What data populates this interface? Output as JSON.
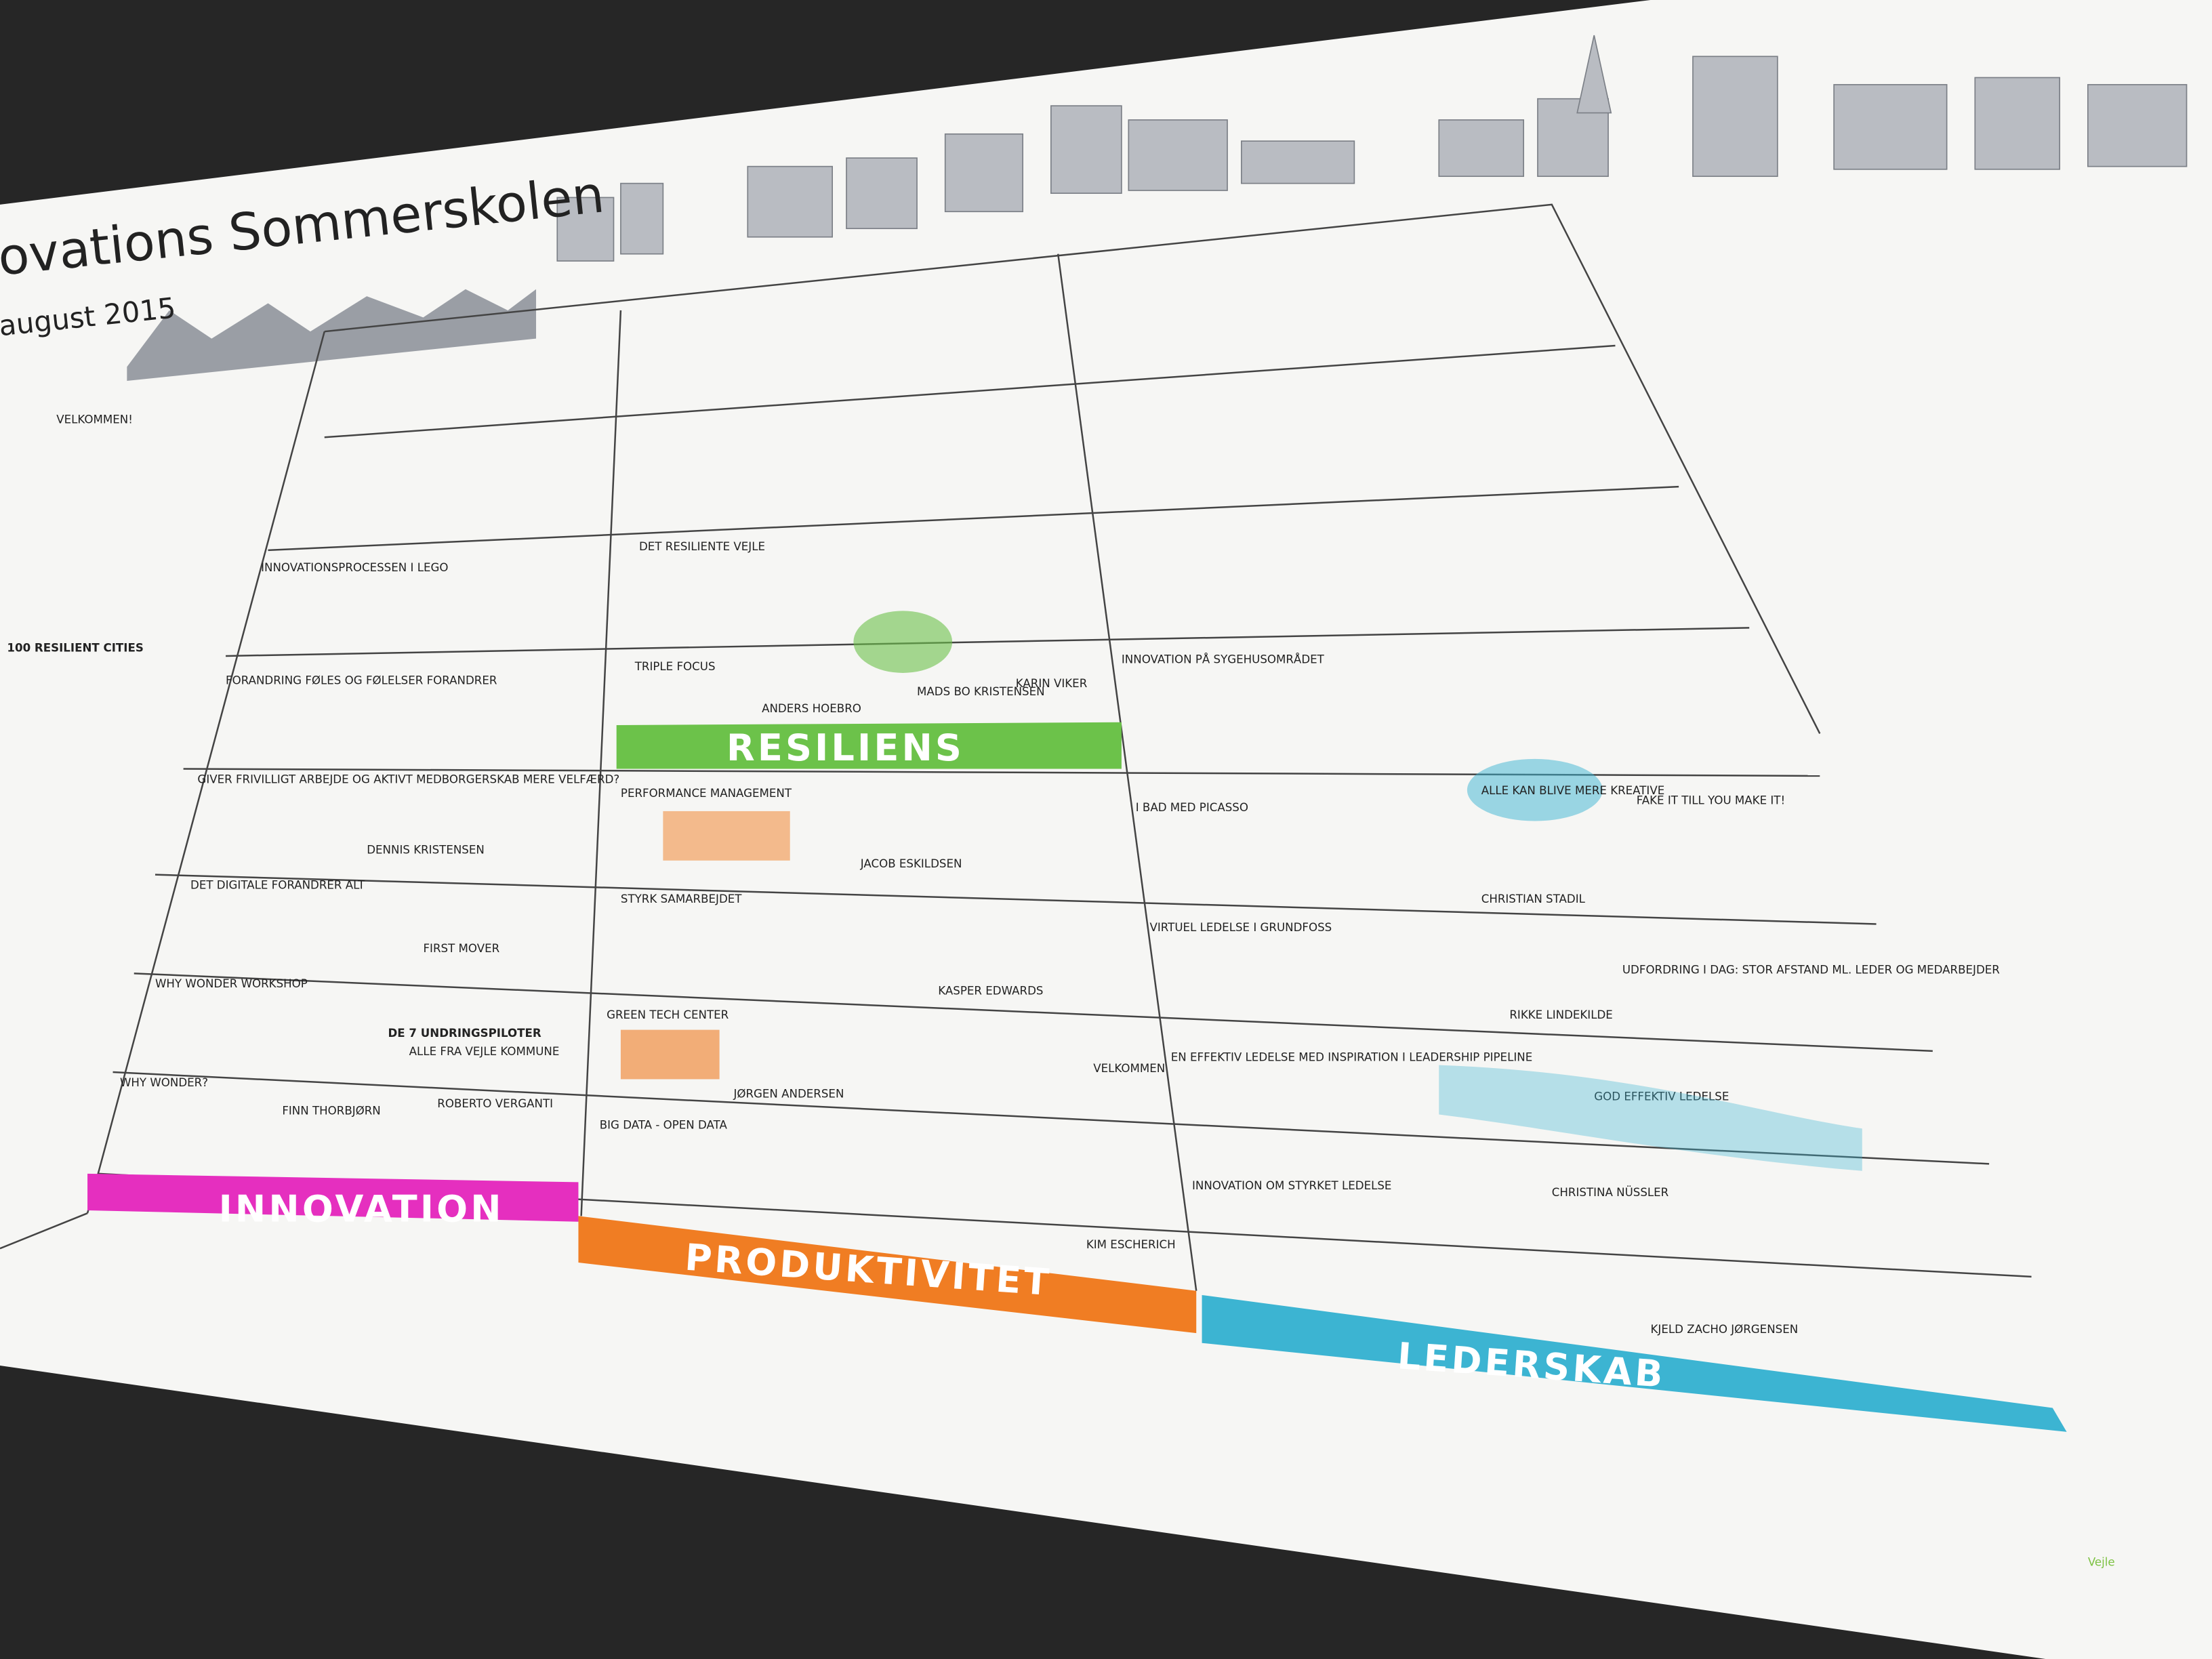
{
  "header": {
    "title": "ovations Sommerskolen",
    "date": "august 2015"
  },
  "intro": {
    "welcome": "VELKOMMEN!",
    "cities": "100 RESILIENT CITIES",
    "lego": "INNOVATIONSPROCESSEN I LEGO",
    "change": "FORANDRING FØLES OG FØLELSER FORANDRER"
  },
  "columns": [
    {
      "label": "INNOVATION",
      "color": "#e52fbf",
      "cells": [
        "GIVER FRIVILLIGT ARBEJDE OG AKTIVT MEDBORGERSKAB MERE VELFÆRD?",
        "DENNIS KRISTENSEN",
        "DET DIGITALE FORANDRER ALT",
        "FIRST MOVER",
        "WHY WONDER WORKSHOP",
        "DE 7 UNDRINGSPILOTER",
        "ALLE FRA VEJLE KOMMUNE",
        "WHY WONDER?",
        "FINN THORBJØRN",
        "ROBERTO VERGANTI"
      ]
    },
    {
      "label": "PRODUKTIVITET",
      "color": "#f07d23",
      "cells": [
        "PERFORMANCE MANAGEMENT",
        "JACOB ESKILDSEN",
        "STYRK SAMARBEJDET",
        "KASPER EDWARDS",
        "GREEN TECH CENTER",
        "JØRGEN ANDERSEN",
        "VELKOMMEN",
        "BIG DATA - OPEN DATA",
        "KIM ESCHERICH"
      ]
    },
    {
      "label": "RESILIENS",
      "color": "#6cc24a",
      "cells": [
        "DET RESILIENTE VEJLE",
        "TRIPLE FOCUS",
        "ANDERS HOEBRO",
        "MADS BO KRISTENSEN",
        "KARIN VIKER"
      ]
    },
    {
      "label": "LEDERSKAB",
      "color": "#3cb4d2",
      "cells": [
        "INNOVATION PÅ SYGEHUSOMRÅDET",
        "I BAD MED PICASSO",
        "ALLE KAN BLIVE MERE KREATIVE",
        "FAKE IT TILL YOU MAKE IT!",
        "CHRISTIAN STADIL",
        "VIRTUEL LEDELSE I GRUNDFOSS",
        "UDFORDRING I DAG: STOR AFSTAND ML. LEDER OG MEDARBEJDER",
        "RIKKE LINDEKILDE",
        "EN EFFEKTIV LEDELSE MED INSPIRATION I LEADERSHIP PIPELINE",
        "GOD EFFEKTIV LEDELSE",
        "CHRISTINA NÜSSLER",
        "INNOVATION OM STYRKET LEDELSE",
        "KJELD ZACHO JØRGENSEN"
      ]
    }
  ],
  "footer": {
    "logo": "Vejle"
  }
}
